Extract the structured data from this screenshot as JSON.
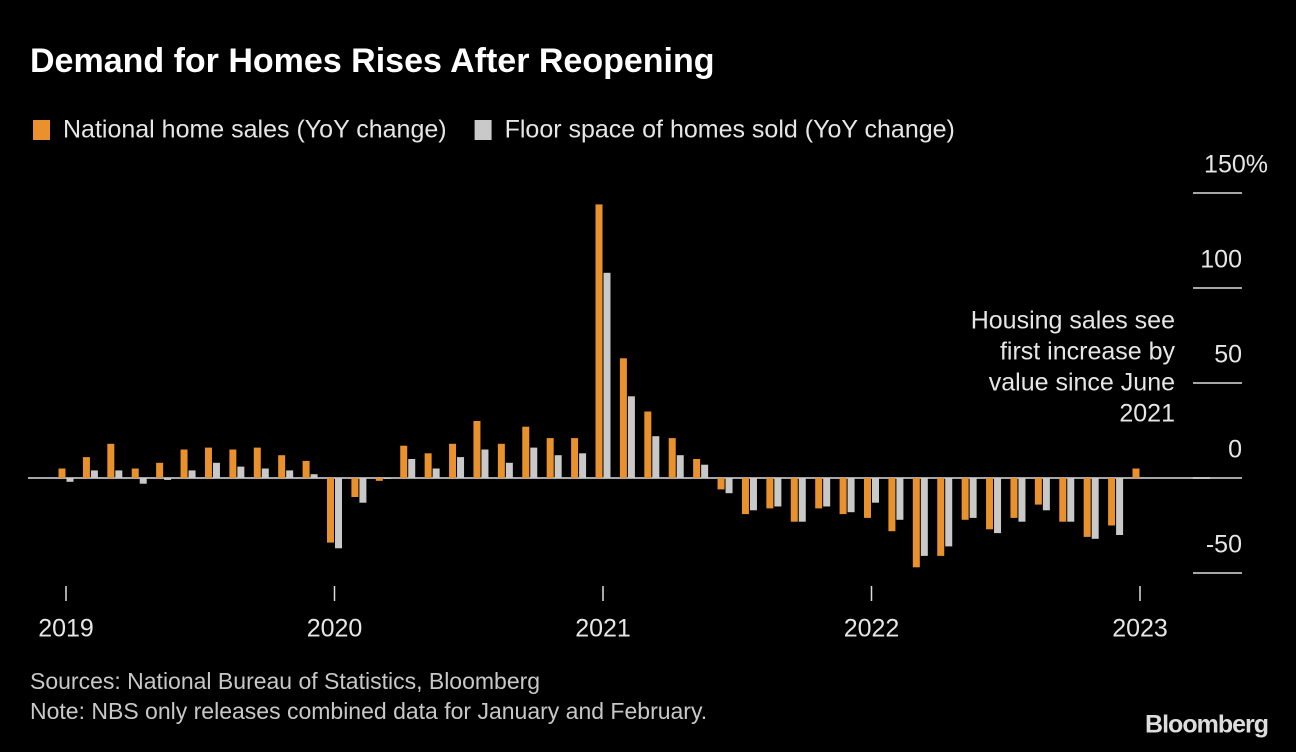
{
  "chart_data": {
    "type": "bar",
    "title": "Demand for Homes Rises After Reopening",
    "categories": [
      "2019",
      null,
      null,
      null,
      null,
      null,
      null,
      null,
      null,
      null,
      null,
      "2020",
      null,
      null,
      null,
      null,
      null,
      null,
      null,
      null,
      null,
      null,
      "2021",
      null,
      null,
      null,
      null,
      null,
      null,
      null,
      null,
      null,
      null,
      "2022",
      null,
      null,
      null,
      null,
      null,
      null,
      null,
      null,
      null,
      null,
      "2023"
    ],
    "series": [
      {
        "name": "National home sales (YoY change)",
        "color": "#e8912d",
        "values": [
          5,
          11,
          18,
          5,
          8,
          15,
          16,
          15,
          16,
          12,
          9,
          -34,
          -10,
          -1.5,
          17,
          13,
          18,
          30,
          18,
          27,
          21,
          21,
          144,
          63,
          35,
          21,
          10,
          -6,
          -19,
          -16,
          -23,
          -16,
          -19,
          -21,
          -28,
          -47,
          -41,
          -22,
          -27,
          -21,
          -14,
          -23,
          -31,
          -25,
          5
        ]
      },
      {
        "name": "Floor space of homes sold (YoY change)",
        "color": "#c9c9c9",
        "values": [
          -2,
          4,
          4,
          -3,
          -1,
          4,
          8,
          6,
          5,
          4,
          2,
          -37,
          -13,
          -0.5,
          10,
          5,
          11,
          15,
          8,
          16,
          12,
          13,
          108,
          43,
          22,
          12,
          7,
          -8,
          -17,
          -15,
          -23,
          -15,
          -18,
          -13,
          -22,
          -41,
          -36,
          -21,
          -29,
          -23,
          -17,
          -23,
          -32,
          -30,
          null
        ]
      }
    ],
    "ylim": [
      -50,
      150
    ],
    "yticks": [
      {
        "value": 150,
        "label": "150%"
      },
      100,
      50,
      0,
      -50
    ],
    "annotation": [
      "Housing sales see",
      "first increase by",
      "value since June",
      "2021"
    ],
    "source": "Sources: National Bureau of Statistics, Bloomberg",
    "note": "Note: NBS only releases combined data for January and February.",
    "brand": "Bloomberg"
  }
}
